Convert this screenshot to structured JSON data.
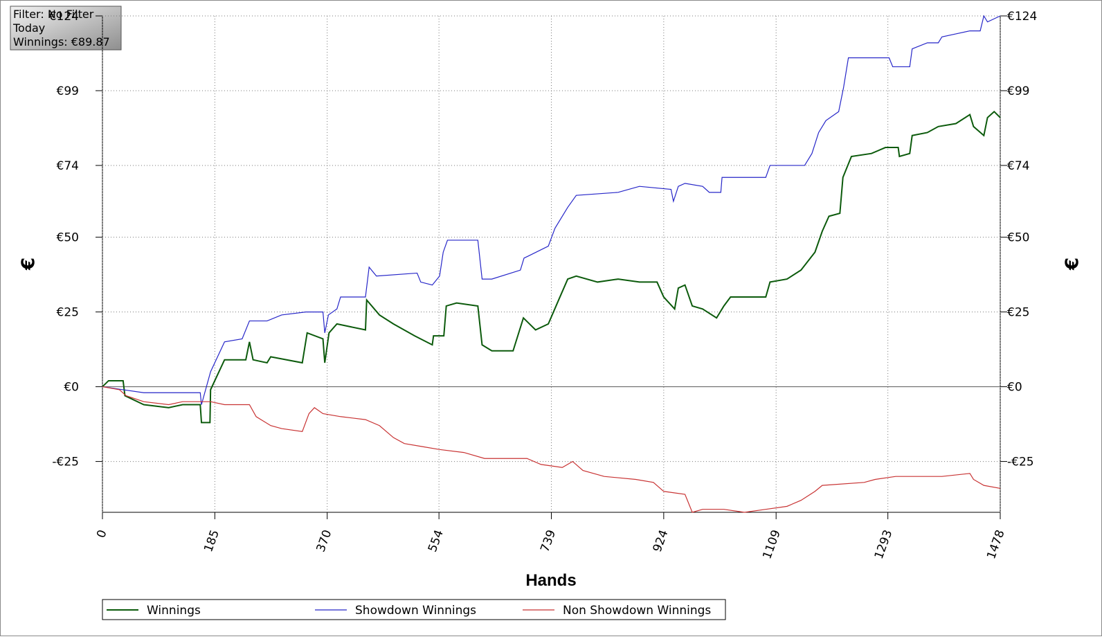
{
  "chart_data": {
    "type": "line",
    "info": [
      "Filter: No Filter",
      "Today",
      "Winnings: €89.87"
    ],
    "xlabel": "Hands",
    "ylabel": "€",
    "y2label": "€",
    "xlim": [
      0,
      1478
    ],
    "xticks": [
      0,
      185,
      370,
      554,
      739,
      924,
      1109,
      1293,
      1478
    ],
    "ylim": [
      -42,
      124
    ],
    "yticks": [
      {
        "value": -25,
        "label": "-€25"
      },
      {
        "value": 0,
        "label": "€0"
      },
      {
        "value": 25,
        "label": "€25"
      },
      {
        "value": 50,
        "label": "€50"
      },
      {
        "value": 74,
        "label": "€74"
      },
      {
        "value": 99,
        "label": "€99"
      },
      {
        "value": 124,
        "label": "€124"
      }
    ],
    "grid": true,
    "legend": "bottom",
    "series": [
      {
        "name": "Winnings",
        "color": "#0b5a0b",
        "x": [
          0,
          10,
          34,
          37,
          68,
          109,
          132,
          161,
          163,
          177,
          178,
          201,
          236,
          242,
          248,
          271,
          277,
          329,
          337,
          363,
          366,
          373,
          386,
          433,
          435,
          456,
          479,
          514,
          543,
          545,
          562,
          566,
          583,
          618,
          625,
          641,
          676,
          693,
          713,
          734,
          751,
          766,
          780,
          815,
          849,
          884,
          913,
          924,
          942,
          948,
          959,
          971,
          988,
          1011,
          1023,
          1034,
          1092,
          1099,
          1127,
          1150,
          1173,
          1185,
          1196,
          1214,
          1219,
          1233,
          1266,
          1289,
          1310,
          1312,
          1329,
          1333,
          1358,
          1376,
          1405,
          1428,
          1434,
          1451,
          1457,
          1468,
          1478
        ],
        "values": [
          0,
          2,
          2,
          -3,
          -6,
          -7,
          -6,
          -6,
          -12,
          -12,
          -1,
          9,
          9,
          15,
          9,
          8,
          10,
          8,
          18,
          16,
          8,
          18,
          21,
          19,
          29,
          24,
          21,
          17,
          14,
          17,
          17,
          27,
          28,
          27,
          14,
          12,
          12,
          23,
          19,
          21,
          29,
          36,
          37,
          35,
          36,
          35,
          35,
          30,
          26,
          33,
          34,
          27,
          26,
          23,
          27,
          30,
          30,
          35,
          36,
          39,
          45,
          52,
          57,
          58,
          70,
          77,
          78,
          80,
          80,
          77,
          78,
          84,
          85,
          87,
          88,
          91,
          87,
          84,
          90,
          92,
          90
        ]
      },
      {
        "name": "Showdown Winnings",
        "color": "#2525c8",
        "x": [
          0,
          34,
          68,
          137,
          161,
          163,
          178,
          201,
          230,
          242,
          271,
          295,
          335,
          363,
          366,
          372,
          386,
          392,
          433,
          439,
          451,
          518,
          524,
          543,
          555,
          561,
          568,
          618,
          625,
          641,
          688,
          694,
          734,
          745,
          766,
          780,
          849,
          884,
          936,
          940,
          948,
          959,
          988,
          999,
          1018,
          1020,
          1092,
          1099,
          1156,
          1168,
          1179,
          1191,
          1212,
          1220,
          1228,
          1295,
          1301,
          1329,
          1333,
          1358,
          1376,
          1382,
          1405,
          1428,
          1445,
          1451,
          1457,
          1478
        ],
        "values": [
          0,
          -1,
          -2,
          -2,
          -2,
          -6,
          5,
          15,
          16,
          22,
          22,
          24,
          25,
          25,
          18,
          24,
          26,
          30,
          30,
          40,
          37,
          38,
          35,
          34,
          37,
          45,
          49,
          49,
          36,
          36,
          39,
          43,
          47,
          53,
          60,
          64,
          65,
          67,
          66,
          62,
          67,
          68,
          67,
          65,
          65,
          70,
          70,
          74,
          74,
          78,
          85,
          89,
          92,
          100,
          110,
          110,
          107,
          107,
          113,
          115,
          115,
          117,
          118,
          119,
          119,
          124,
          122,
          124
        ]
      },
      {
        "name": "Non Showdown Winnings",
        "color": "#c83232",
        "x": [
          0,
          28,
          39,
          68,
          109,
          132,
          178,
          201,
          242,
          253,
          277,
          295,
          329,
          340,
          349,
          363,
          392,
          433,
          456,
          479,
          497,
          526,
          555,
          595,
          629,
          699,
          722,
          757,
          774,
          791,
          826,
          878,
          907,
          924,
          959,
          971,
          988,
          1023,
          1057,
          1092,
          1127,
          1150,
          1173,
          1185,
          1254,
          1272,
          1306,
          1382,
          1428,
          1434,
          1451,
          1478
        ],
        "values": [
          0,
          -1,
          -3,
          -5,
          -6,
          -5,
          -5,
          -6,
          -6,
          -10,
          -13,
          -14,
          -15,
          -9,
          -7,
          -9,
          -10,
          -11,
          -13,
          -17,
          -19,
          -20,
          -21,
          -22,
          -24,
          -24,
          -26,
          -27,
          -25,
          -28,
          -30,
          -31,
          -32,
          -35,
          -36,
          -42,
          -41,
          -41,
          -42,
          -41,
          -40,
          -38,
          -35,
          -33,
          -32,
          -31,
          -30,
          -30,
          -29,
          -31,
          -33,
          -34
        ]
      }
    ]
  }
}
